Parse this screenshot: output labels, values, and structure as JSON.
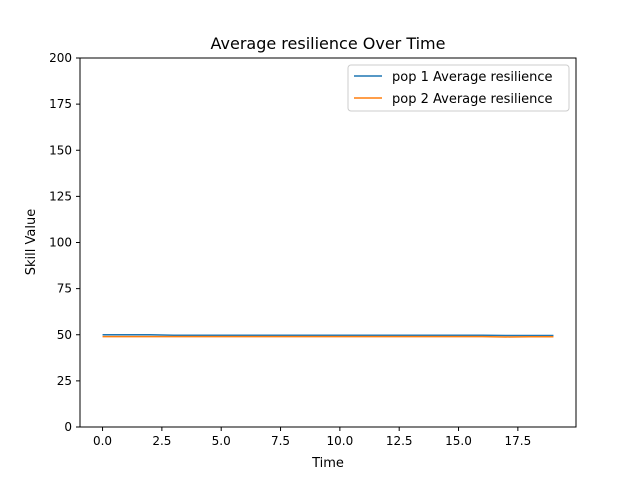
{
  "chart_data": {
    "type": "line",
    "title": "Average resilience Over Time",
    "xlabel": "Time",
    "ylabel": "Skill Value",
    "xlim": [
      -0.95,
      19.95
    ],
    "ylim": [
      0,
      200
    ],
    "xticks": [
      0.0,
      2.5,
      5.0,
      7.5,
      10.0,
      12.5,
      15.0,
      17.5
    ],
    "xtick_labels": [
      "0.0",
      "2.5",
      "5.0",
      "7.5",
      "10.0",
      "12.5",
      "15.0",
      "17.5"
    ],
    "yticks": [
      0,
      25,
      50,
      75,
      100,
      125,
      150,
      175,
      200
    ],
    "ytick_labels": [
      "0",
      "25",
      "50",
      "75",
      "100",
      "125",
      "150",
      "175",
      "200"
    ],
    "legend_position": "top-right",
    "x": [
      0,
      1,
      2,
      3,
      4,
      5,
      6,
      7,
      8,
      9,
      10,
      11,
      12,
      13,
      14,
      15,
      16,
      17,
      18,
      19
    ],
    "series": [
      {
        "name": "pop 1 Average resilience",
        "color": "#1f77b4",
        "values": [
          50.0,
          50.0,
          50.0,
          49.7,
          49.7,
          49.7,
          49.7,
          49.7,
          49.7,
          49.7,
          49.7,
          49.7,
          49.7,
          49.7,
          49.7,
          49.7,
          49.7,
          49.6,
          49.6,
          49.6
        ]
      },
      {
        "name": "pop 2 Average resilience",
        "color": "#ff7f0e",
        "values": [
          49.0,
          49.0,
          49.0,
          49.0,
          49.0,
          49.0,
          49.0,
          49.0,
          49.0,
          49.0,
          49.0,
          49.0,
          49.0,
          49.0,
          49.0,
          49.0,
          49.0,
          48.8,
          48.9,
          48.9
        ]
      }
    ]
  }
}
